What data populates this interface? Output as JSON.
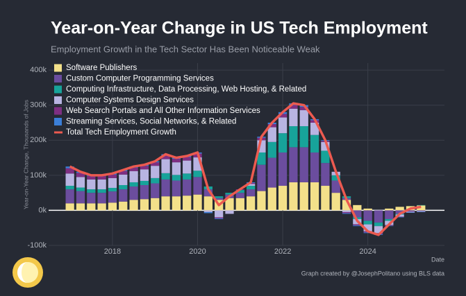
{
  "chart_data": {
    "type": "bar",
    "stacked": true,
    "title": "Year-on-Year Change in US Tech Employment",
    "subtitle": "Employment Growth in the Tech Sector Has Been Noticeable Weak",
    "y_label": "Year-on-Year Change, Thousands of Jobs",
    "x_label": "Date",
    "credit": "Graph created by @JosephPolitano using BLS data",
    "x": [
      2017.0,
      2017.25,
      2017.5,
      2017.75,
      2018.0,
      2018.25,
      2018.5,
      2018.75,
      2019.0,
      2019.25,
      2019.5,
      2019.75,
      2020.0,
      2020.25,
      2020.5,
      2020.75,
      2021.0,
      2021.25,
      2021.5,
      2021.75,
      2022.0,
      2022.25,
      2022.5,
      2022.75,
      2023.0,
      2023.25,
      2023.5,
      2023.75,
      2024.0,
      2024.25,
      2024.5,
      2024.75,
      2025.0,
      2025.25
    ],
    "xlim": [
      2016.5,
      2025.8
    ],
    "xticks": [
      2018,
      2020,
      2022,
      2024
    ],
    "ylim": [
      -100,
      420
    ],
    "yticks": [
      {
        "value": -100,
        "label": "-100k"
      },
      {
        "value": 0,
        "label": "0k"
      },
      {
        "value": 100,
        "label": "100k"
      },
      {
        "value": 200,
        "label": "200k"
      },
      {
        "value": 300,
        "label": "300k"
      },
      {
        "value": 400,
        "label": "400k"
      }
    ],
    "grid": true,
    "legend": "top-left",
    "series": [
      {
        "name": "Software Publishers",
        "type": "bar",
        "color": "#f3e08a",
        "values": [
          20,
          20,
          20,
          20,
          22,
          25,
          30,
          32,
          35,
          40,
          40,
          42,
          45,
          40,
          30,
          35,
          35,
          40,
          55,
          65,
          70,
          80,
          80,
          80,
          70,
          50,
          30,
          15,
          5,
          0,
          5,
          10,
          12,
          14
        ]
      },
      {
        "name": "Custom Computer Programming Services",
        "type": "bar",
        "color": "#6b4d9e",
        "values": [
          40,
          35,
          30,
          30,
          32,
          35,
          38,
          40,
          42,
          48,
          45,
          46,
          50,
          20,
          5,
          10,
          15,
          20,
          75,
          85,
          95,
          100,
          100,
          85,
          65,
          35,
          5,
          -20,
          -30,
          -35,
          -25,
          -10,
          -4,
          -2
        ]
      },
      {
        "name": "Computing Infrastructure, Data Processing, Web Hosting, & Related",
        "type": "bar",
        "color": "#17a39a",
        "values": [
          10,
          10,
          10,
          10,
          10,
          12,
          12,
          12,
          15,
          18,
          16,
          17,
          18,
          8,
          5,
          5,
          8,
          10,
          35,
          45,
          55,
          60,
          60,
          50,
          35,
          15,
          5,
          -5,
          -10,
          -10,
          -5,
          -2,
          0,
          1
        ]
      },
      {
        "name": "Computer Systems Design Services",
        "type": "bar",
        "color": "#b8b4e2",
        "values": [
          35,
          30,
          28,
          28,
          28,
          30,
          32,
          33,
          35,
          40,
          36,
          37,
          38,
          -5,
          -20,
          -10,
          0,
          5,
          35,
          42,
          45,
          50,
          46,
          35,
          25,
          10,
          -5,
          -15,
          -20,
          -20,
          -12,
          -6,
          -2,
          -2
        ]
      },
      {
        "name": "Web Search Portals and All Other Information Services",
        "type": "bar",
        "color": "#7e2f82",
        "values": [
          15,
          12,
          10,
          10,
          10,
          10,
          10,
          10,
          10,
          11,
          10,
          10,
          11,
          0,
          -3,
          0,
          2,
          3,
          7,
          9,
          10,
          10,
          9,
          7,
          3,
          0,
          -3,
          -3,
          -3,
          -3,
          -2,
          -1,
          0,
          0
        ]
      },
      {
        "name": "Streaming Services, Social Networks, & Related",
        "type": "bar",
        "color": "#3b7fd8",
        "values": [
          5,
          3,
          2,
          2,
          3,
          3,
          3,
          3,
          3,
          3,
          3,
          3,
          3,
          -3,
          -2,
          0,
          0,
          2,
          3,
          4,
          5,
          5,
          5,
          3,
          2,
          0,
          -2,
          -2,
          -2,
          -2,
          -1,
          -1,
          -1,
          -1
        ]
      },
      {
        "name": "Total Tech Employment Growth",
        "type": "line",
        "color": "#ec5a50",
        "values": [
          125,
          110,
          100,
          100,
          105,
          115,
          125,
          130,
          140,
          160,
          150,
          155,
          165,
          60,
          15,
          40,
          60,
          80,
          210,
          250,
          280,
          305,
          300,
          260,
          200,
          110,
          30,
          -30,
          -60,
          -70,
          -40,
          -10,
          5,
          10
        ]
      }
    ]
  }
}
